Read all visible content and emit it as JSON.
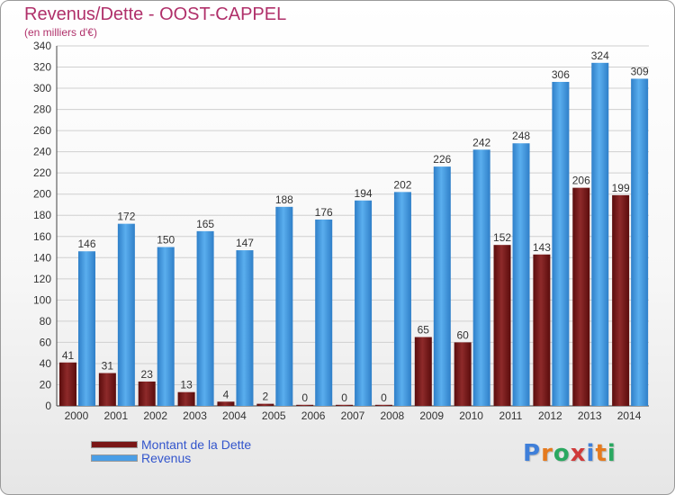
{
  "chart_title": "Revenus/Dette - OOST-CAPPEL",
  "chart_subtitle": "(en milliers d'€)",
  "legend": [
    {
      "label": "Montant de la Dette",
      "color": "#7a1616"
    },
    {
      "label": "Revenus",
      "color": "#4a9ee6"
    }
  ],
  "logo": {
    "text": "Proxiti",
    "letters": [
      "P",
      "r",
      "o",
      "x",
      "i",
      "t",
      "i"
    ],
    "colors": [
      "#3f7fd9",
      "#e57a1e",
      "#2aa860",
      "#d03a3a",
      "#3f7fd9",
      "#e57a1e",
      "#2aa860"
    ]
  },
  "chart_data": {
    "type": "bar",
    "title": "Revenus/Dette - OOST-CAPPEL",
    "subtitle": "(en milliers d'€)",
    "categories": [
      "2000",
      "2001",
      "2002",
      "2003",
      "2004",
      "2005",
      "2006",
      "2007",
      "2008",
      "2009",
      "2010",
      "2011",
      "2012",
      "2013",
      "2014"
    ],
    "series": [
      {
        "name": "Montant de la Dette",
        "color": "#7a1616",
        "values": [
          41,
          31,
          23,
          13,
          4,
          2,
          0,
          0,
          0,
          65,
          60,
          152,
          143,
          206,
          199
        ]
      },
      {
        "name": "Revenus",
        "color": "#4a9ee6",
        "values": [
          146,
          172,
          150,
          165,
          147,
          188,
          176,
          194,
          202,
          226,
          242,
          248,
          306,
          324,
          309
        ]
      }
    ],
    "ylim": [
      0,
      340
    ],
    "yticks": [
      0,
      20,
      40,
      60,
      80,
      100,
      120,
      140,
      160,
      180,
      200,
      220,
      240,
      260,
      280,
      300,
      320,
      340
    ],
    "grid": true,
    "legend_position": "bottom-left"
  }
}
